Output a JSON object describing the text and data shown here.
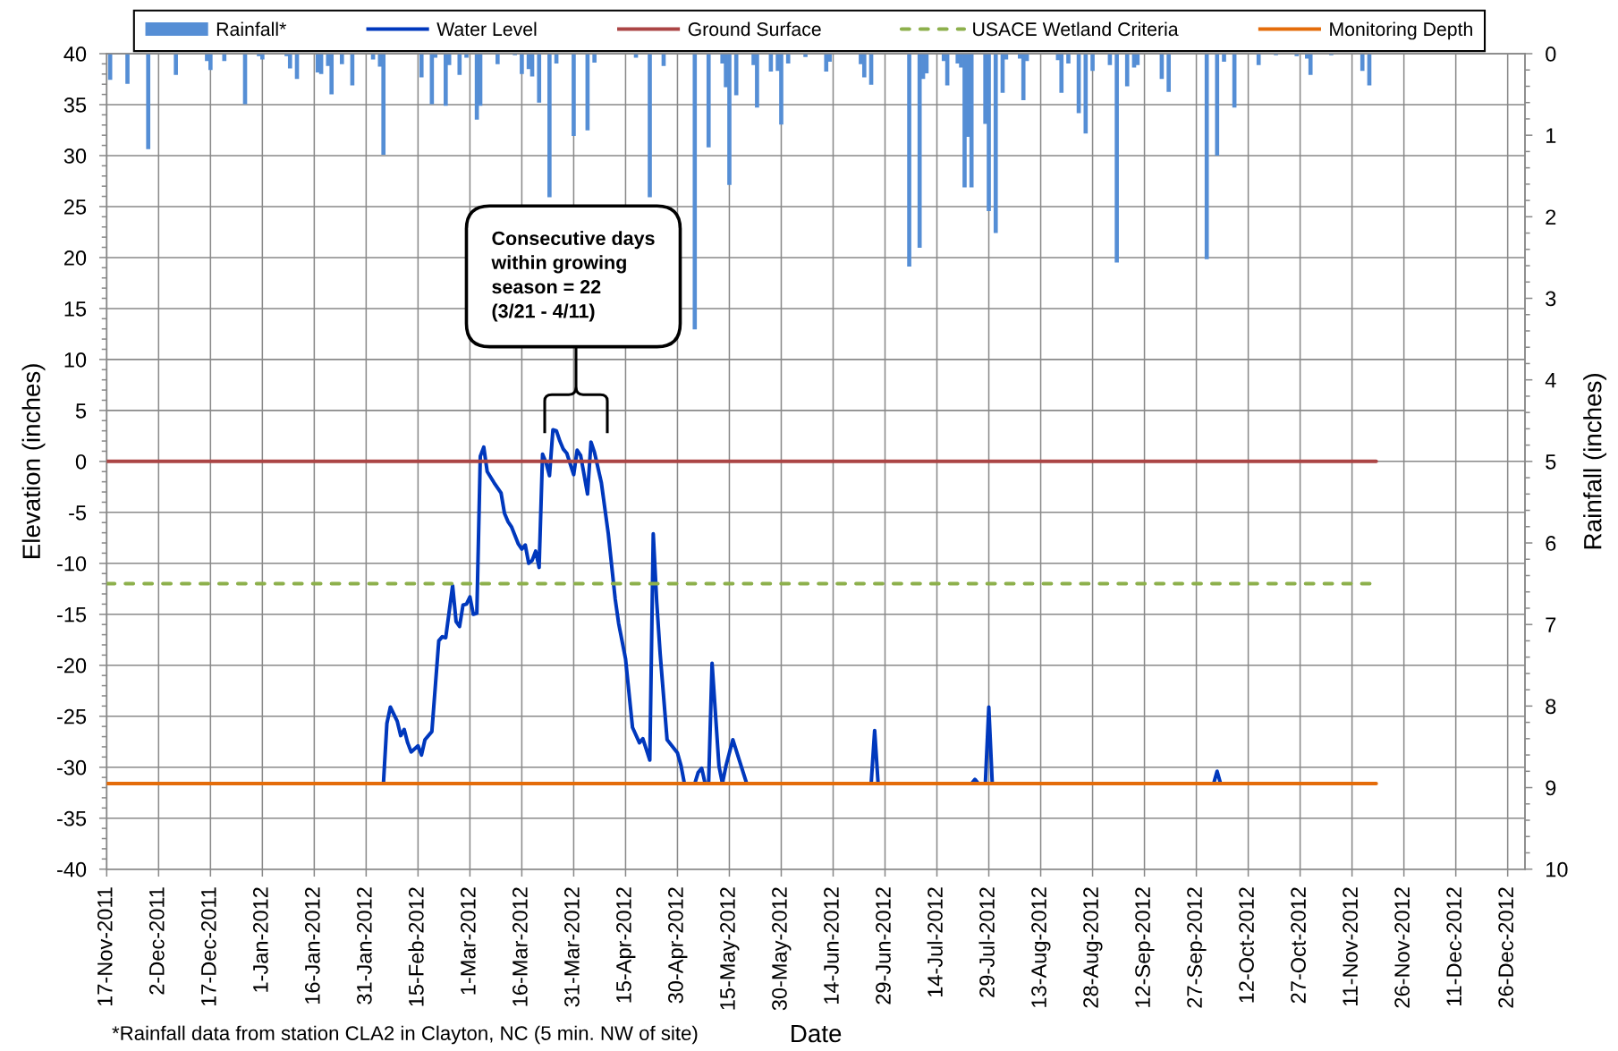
{
  "chart_data": {
    "type": "line",
    "xlabel": "Date",
    "ylabel": "Elevation (inches)",
    "y2label": "Rainfall (inches)",
    "xlim": [
      "2011-11-17",
      "2012-12-31"
    ],
    "xticks": [
      {
        "value": "2011-11-17",
        "label": "17-Nov-2011"
      },
      {
        "value": "2011-12-02",
        "label": "2-Dec-2011"
      },
      {
        "value": "2011-12-17",
        "label": "17-Dec-2011"
      },
      {
        "value": "2012-01-01",
        "label": "1-Jan-2012"
      },
      {
        "value": "2012-01-16",
        "label": "16-Jan-2012"
      },
      {
        "value": "2012-01-31",
        "label": "31-Jan-2012"
      },
      {
        "value": "2012-02-15",
        "label": "15-Feb-2012"
      },
      {
        "value": "2012-03-01",
        "label": "1-Mar-2012"
      },
      {
        "value": "2012-03-16",
        "label": "16-Mar-2012"
      },
      {
        "value": "2012-03-31",
        "label": "31-Mar-2012"
      },
      {
        "value": "2012-04-15",
        "label": "15-Apr-2012"
      },
      {
        "value": "2012-04-30",
        "label": "30-Apr-2012"
      },
      {
        "value": "2012-05-15",
        "label": "15-May-2012"
      },
      {
        "value": "2012-05-30",
        "label": "30-May-2012"
      },
      {
        "value": "2012-06-14",
        "label": "14-Jun-2012"
      },
      {
        "value": "2012-06-29",
        "label": "29-Jun-2012"
      },
      {
        "value": "2012-07-14",
        "label": "14-Jul-2012"
      },
      {
        "value": "2012-07-29",
        "label": "29-Jul-2012"
      },
      {
        "value": "2012-08-13",
        "label": "13-Aug-2012"
      },
      {
        "value": "2012-08-28",
        "label": "28-Aug-2012"
      },
      {
        "value": "2012-09-12",
        "label": "12-Sep-2012"
      },
      {
        "value": "2012-09-27",
        "label": "27-Sep-2012"
      },
      {
        "value": "2012-10-12",
        "label": "12-Oct-2012"
      },
      {
        "value": "2012-10-27",
        "label": "27-Oct-2012"
      },
      {
        "value": "2012-11-11",
        "label": "11-Nov-2012"
      },
      {
        "value": "2012-11-26",
        "label": "26-Nov-2012"
      },
      {
        "value": "2012-12-11",
        "label": "11-Dec-2012"
      },
      {
        "value": "2012-12-26",
        "label": "26-Dec-2012"
      }
    ],
    "ylim": [
      -40,
      40
    ],
    "yticks": [
      -40,
      -35,
      -30,
      -25,
      -20,
      -15,
      -10,
      -5,
      0,
      5,
      10,
      15,
      20,
      25,
      30,
      35,
      40
    ],
    "y2lim": [
      10,
      0
    ],
    "y2ticks": [
      0,
      1,
      2,
      3,
      4,
      5,
      6,
      7,
      8,
      9,
      10
    ],
    "grid": true,
    "legend": "top",
    "series": [
      {
        "name": "Rainfall*",
        "type": "bar",
        "axis": "y2",
        "color": "#558ed5",
        "x": [
          "2011-11-18",
          "2011-11-23",
          "2011-11-29",
          "2011-12-07",
          "2011-12-16",
          "2011-12-17",
          "2011-12-21",
          "2011-12-27",
          "2011-12-31",
          "2012-01-01",
          "2012-01-08",
          "2012-01-09",
          "2012-01-11",
          "2012-01-17",
          "2012-01-18",
          "2012-01-20",
          "2012-01-21",
          "2012-01-24",
          "2012-01-27",
          "2012-02-02",
          "2012-02-04",
          "2012-02-05",
          "2012-02-16",
          "2012-02-19",
          "2012-02-20",
          "2012-02-23",
          "2012-02-24",
          "2012-02-27",
          "2012-02-29",
          "2012-03-03",
          "2012-03-04",
          "2012-03-09",
          "2012-03-14",
          "2012-03-16",
          "2012-03-18",
          "2012-03-19",
          "2012-03-21",
          "2012-03-24",
          "2012-03-26",
          "2012-03-31",
          "2012-04-04",
          "2012-04-06",
          "2012-04-18",
          "2012-04-22",
          "2012-04-26",
          "2012-05-05",
          "2012-05-09",
          "2012-05-13",
          "2012-05-14",
          "2012-05-15",
          "2012-05-17",
          "2012-05-22",
          "2012-05-23",
          "2012-05-27",
          "2012-05-29",
          "2012-05-30",
          "2012-06-01",
          "2012-06-06",
          "2012-06-12",
          "2012-06-13",
          "2012-06-22",
          "2012-06-23",
          "2012-06-25",
          "2012-07-06",
          "2012-07-09",
          "2012-07-10",
          "2012-07-11",
          "2012-07-16",
          "2012-07-17",
          "2012-07-20",
          "2012-07-21",
          "2012-07-22",
          "2012-07-23",
          "2012-07-24",
          "2012-07-28",
          "2012-07-29",
          "2012-07-31",
          "2012-08-02",
          "2012-08-03",
          "2012-08-07",
          "2012-08-08",
          "2012-08-09",
          "2012-08-18",
          "2012-08-19",
          "2012-08-21",
          "2012-08-24",
          "2012-08-26",
          "2012-08-28",
          "2012-09-02",
          "2012-09-04",
          "2012-09-07",
          "2012-09-09",
          "2012-09-10",
          "2012-09-17",
          "2012-09-19",
          "2012-09-30",
          "2012-10-03",
          "2012-10-05",
          "2012-10-08",
          "2012-10-15",
          "2012-10-20",
          "2012-10-26",
          "2012-10-29",
          "2012-10-30",
          "2012-11-05",
          "2012-11-14",
          "2012-11-16"
        ],
        "values": [
          0.32,
          0.37,
          1.17,
          0.26,
          0.09,
          0.2,
          0.09,
          0.62,
          0.03,
          0.07,
          0.03,
          0.18,
          0.31,
          0.23,
          0.25,
          0.15,
          0.5,
          0.13,
          0.39,
          0.07,
          0.16,
          1.24,
          0.29,
          0.62,
          0.05,
          0.64,
          0.14,
          0.26,
          0.05,
          0.81,
          0.64,
          0.13,
          0.02,
          0.25,
          0.19,
          0.28,
          0.6,
          1.76,
          0.12,
          1.01,
          0.94,
          0.11,
          0.05,
          1.76,
          0.15,
          3.38,
          1.15,
          0.12,
          0.41,
          1.61,
          0.51,
          0.14,
          0.66,
          0.22,
          0.21,
          0.87,
          0.12,
          0.04,
          0.22,
          0.1,
          0.13,
          0.29,
          0.38,
          2.61,
          2.38,
          0.31,
          0.24,
          0.09,
          0.39,
          0.12,
          0.17,
          1.64,
          1.02,
          1.64,
          0.86,
          1.93,
          2.2,
          0.48,
          0.07,
          0.06,
          0.57,
          0.09,
          0.08,
          0.48,
          0.12,
          0.73,
          0.98,
          0.21,
          0.14,
          2.56,
          0.4,
          0.17,
          0.14,
          0.31,
          0.47,
          2.52,
          1.25,
          0.1,
          0.66,
          0.14,
          0.02,
          0.03,
          0.06,
          0.26,
          0.02,
          0.21,
          0.39
        ]
      },
      {
        "name": "Water Level",
        "color": "#0038bd",
        "x": [
          "2012-02-05",
          "2012-02-06",
          "2012-02-07",
          "2012-02-09",
          "2012-02-10",
          "2012-02-11",
          "2012-02-12",
          "2012-02-13",
          "2012-02-15",
          "2012-02-16",
          "2012-02-17",
          "2012-02-19",
          "2012-02-21",
          "2012-02-22",
          "2012-02-23",
          "2012-02-25",
          "2012-02-26",
          "2012-02-27",
          "2012-02-28",
          "2012-02-29",
          "2012-03-01",
          "2012-03-02",
          "2012-03-03",
          "2012-03-04",
          "2012-03-05",
          "2012-03-06",
          "2012-03-08",
          "2012-03-10",
          "2012-03-11",
          "2012-03-12",
          "2012-03-13",
          "2012-03-15",
          "2012-03-16",
          "2012-03-17",
          "2012-03-18",
          "2012-03-19",
          "2012-03-20",
          "2012-03-21",
          "2012-03-22",
          "2012-03-23",
          "2012-03-24",
          "2012-03-25",
          "2012-03-26",
          "2012-03-27",
          "2012-03-28",
          "2012-03-29",
          "2012-03-31",
          "2012-04-01",
          "2012-04-02",
          "2012-04-04",
          "2012-04-05",
          "2012-04-06",
          "2012-04-08",
          "2012-04-10",
          "2012-04-12",
          "2012-04-13",
          "2012-04-15",
          "2012-04-17",
          "2012-04-19",
          "2012-04-20",
          "2012-04-22",
          "2012-04-23",
          "2012-04-24",
          "2012-04-25",
          "2012-04-27",
          "2012-04-30",
          "2012-05-01",
          "2012-05-02",
          "2012-05-03",
          "2012-05-05",
          "2012-05-06",
          "2012-05-07",
          "2012-05-08",
          "2012-05-09",
          "2012-05-10",
          "2012-05-12",
          "2012-05-13",
          "2012-05-14",
          "2012-05-16",
          "2012-05-20",
          "2012-06-01",
          "2012-06-25",
          "2012-06-26",
          "2012-06-27",
          "2012-07-01",
          "2012-07-24",
          "2012-07-25",
          "2012-07-26",
          "2012-07-27",
          "2012-07-28",
          "2012-07-29",
          "2012-07-30",
          "2012-08-01",
          "2012-10-02",
          "2012-10-03",
          "2012-10-04"
        ],
        "values": [
          -31.6,
          -25.7,
          -24.1,
          -25.5,
          -26.9,
          -26.3,
          -27.6,
          -28.5,
          -27.9,
          -28.8,
          -27.3,
          -26.5,
          -17.6,
          -17.2,
          -17.3,
          -12.2,
          -15.7,
          -16.2,
          -14.1,
          -14.0,
          -13.3,
          -15.0,
          -14.9,
          0.5,
          1.4,
          -1.0,
          -2.1,
          -3.1,
          -5.1,
          -5.9,
          -6.4,
          -8.1,
          -8.6,
          -8.2,
          -10.0,
          -9.7,
          -8.8,
          -10.4,
          0.7,
          -0.1,
          -1.4,
          3.1,
          3.0,
          2.0,
          1.2,
          0.8,
          -1.3,
          1.1,
          0.6,
          -3.2,
          1.9,
          0.9,
          -2.1,
          -7.1,
          -13.5,
          -15.9,
          -19.4,
          -26.1,
          -27.6,
          -27.2,
          -29.3,
          -7.1,
          -13.8,
          -18.9,
          -27.3,
          -28.6,
          -29.8,
          -31.6,
          null,
          -31.6,
          -30.5,
          -30.1,
          -31.6,
          -31.6,
          -19.8,
          -29.9,
          -31.6,
          -29.9,
          -27.3,
          -31.6,
          null,
          -31.6,
          -26.4,
          -31.6,
          null,
          -31.6,
          -31.2,
          -31.6,
          null,
          -31.6,
          -24.1,
          -31.6,
          null,
          -31.6,
          -30.4,
          -31.6
        ]
      },
      {
        "name": "Ground Surface",
        "color": "#ab4545",
        "x": [
          "2011-11-17",
          "2012-11-18"
        ],
        "values": [
          0,
          0
        ]
      },
      {
        "name": "USACE Wetland Criteria",
        "color": "#8db04c",
        "line_style": "dashed",
        "x": [
          "2011-11-17",
          "2012-11-18"
        ],
        "values": [
          -12,
          -12
        ]
      },
      {
        "name": "Monitoring Depth",
        "color": "#e46c0a",
        "x": [
          "2011-11-17",
          "2012-11-18"
        ],
        "values": [
          -31.6,
          -31.6
        ]
      }
    ],
    "annotations": [
      "Consecutive days\nwithin growing\nseason = 22\n(3/21 - 4/11)",
      "*Rainfall data from station CLA2 in Clayton, NC (5 min. NW of site)"
    ]
  }
}
